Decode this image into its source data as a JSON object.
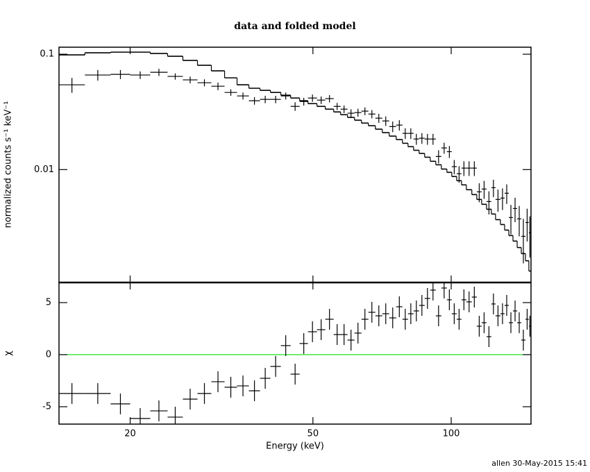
{
  "footer": "allen 30-May-2015 15:41",
  "chart_data": {
    "type": "spectrum",
    "title": "data and folded model",
    "x_label": "Energy (keV)",
    "xlim": [
      14.0,
      149.2
    ],
    "xticks": [
      20,
      50,
      100
    ],
    "log_x": true,
    "bins": [
      14.0,
      15.94,
      18.14,
      20.0,
      22.12,
      24.13,
      26.05,
      28.03,
      30.05,
      32.11,
      34.18,
      36.27,
      38.35,
      40.41,
      42.57,
      44.71,
      46.77,
      48.77,
      51.03,
      53.2,
      55.48,
      57.44,
      59.47,
      61.59,
      63.77,
      66.03,
      68.38,
      70.79,
      73.3,
      75.9,
      78.33,
      80.54,
      82.82,
      85.15,
      87.55,
      90.03,
      92.57,
      95.19,
      97.88,
      100.3,
      102.8,
      105.3,
      107.9,
      110.9,
      113.7,
      116.5,
      119.4,
      122.3,
      124.9,
      128.0,
      130.7,
      133.5,
      136.3,
      139.2,
      142.1,
      145.1,
      147.6,
      149.2
    ],
    "y_label": "normalized counts s⁻¹ keV⁻¹",
    "ylim": [
      0.00105,
      0.115
    ],
    "yticks": [
      0.01,
      0.1
    ],
    "log_y": true,
    "data": {
      "color": "#000000",
      "values": [
        0.0543,
        0.066,
        0.0669,
        0.066,
        0.0697,
        0.0642,
        0.0599,
        0.0566,
        0.0528,
        0.0466,
        0.0435,
        0.0395,
        0.0406,
        0.0406,
        0.0435,
        0.0353,
        0.0389,
        0.0417,
        0.04,
        0.0412,
        0.0353,
        0.0334,
        0.0308,
        0.0312,
        0.0321,
        0.0303,
        0.0279,
        0.0264,
        0.0236,
        0.0243,
        0.0206,
        0.0206,
        0.0184,
        0.0187,
        0.0184,
        0.0184,
        0.013,
        0.0154,
        0.0143,
        0.0106,
        0.0092,
        0.0103,
        0.0103,
        0.0103,
        0.00641,
        0.00678,
        0.00528,
        0.00697,
        0.00551,
        0.00566,
        0.00624,
        0.00384,
        0.0046,
        0.00374,
        0.00264,
        0.00348,
        0.00283
      ],
      "errors": [
        0.008,
        0.007,
        0.006,
        0.005,
        0.005,
        0.004,
        0.004,
        0.004,
        0.004,
        0.003,
        0.003,
        0.003,
        0.003,
        0.003,
        0.003,
        0.003,
        0.003,
        0.003,
        0.003,
        0.003,
        0.0025,
        0.0025,
        0.0025,
        0.0025,
        0.0025,
        0.0025,
        0.0025,
        0.0025,
        0.0025,
        0.0025,
        0.0022,
        0.0022,
        0.002,
        0.002,
        0.002,
        0.002,
        0.0017,
        0.0017,
        0.0017,
        0.0015,
        0.0015,
        0.0015,
        0.0015,
        0.0015,
        0.0012,
        0.0012,
        0.0012,
        0.0012,
        0.0012,
        0.0012,
        0.0012,
        0.0011,
        0.0011,
        0.0011,
        0.0011,
        0.0011,
        0.0011
      ]
    },
    "model": {
      "color": "#000000",
      "values": [
        0.0986,
        0.1028,
        0.1042,
        0.1042,
        0.1014,
        0.0959,
        0.0883,
        0.0801,
        0.0717,
        0.0624,
        0.0543,
        0.0507,
        0.0486,
        0.0466,
        0.0441,
        0.0417,
        0.0395,
        0.0373,
        0.0353,
        0.0334,
        0.0316,
        0.0299,
        0.0283,
        0.0268,
        0.0253,
        0.024,
        0.0224,
        0.0209,
        0.0195,
        0.0182,
        0.0169,
        0.0158,
        0.0147,
        0.0138,
        0.0128,
        0.0118,
        0.011,
        0.0101,
        0.00946,
        0.00871,
        0.00801,
        0.00737,
        0.00669,
        0.00607,
        0.00551,
        0.005,
        0.00453,
        0.00412,
        0.00368,
        0.00334,
        0.00299,
        0.00268,
        0.0024,
        0.00211,
        0.00187,
        0.00162,
        0.00132
      ]
    },
    "residuals": {
      "y_label": "χ",
      "ylim": [
        -6.67,
        6.93
      ],
      "yticks": [
        -5,
        0,
        5
      ],
      "reference_line": 0,
      "reference_color": "#00dd00",
      "values": [
        -3.73,
        -3.73,
        -4.73,
        -6.13,
        -5.4,
        -6.0,
        -4.27,
        -3.73,
        -2.6,
        -3.13,
        -3.0,
        -3.47,
        -2.27,
        -1.13,
        0.87,
        -1.87,
        1.07,
        2.2,
        2.4,
        3.4,
        1.93,
        1.93,
        1.4,
        2.07,
        3.4,
        4.07,
        3.73,
        3.93,
        3.53,
        4.6,
        3.4,
        3.93,
        4.2,
        4.73,
        5.4,
        6.2,
        3.73,
        6.4,
        5.27,
        3.93,
        3.4,
        5.27,
        5.07,
        5.53,
        2.73,
        3.07,
        1.73,
        4.87,
        3.73,
        3.93,
        4.73,
        3.07,
        4.2,
        3.07,
        1.4,
        3.4,
        2.73
      ],
      "errors": [
        1,
        1,
        1,
        1,
        1,
        1,
        1,
        1,
        1,
        1,
        1,
        1,
        1,
        1,
        1,
        1,
        1,
        1,
        1,
        1,
        1,
        1,
        1,
        1,
        1,
        1,
        1,
        1,
        1,
        1,
        1,
        1,
        1,
        1,
        1,
        1,
        1,
        1,
        1,
        1,
        1,
        1,
        1,
        1,
        1,
        1,
        1,
        1,
        1,
        1,
        1,
        1,
        1,
        1,
        1,
        1,
        1
      ]
    }
  }
}
